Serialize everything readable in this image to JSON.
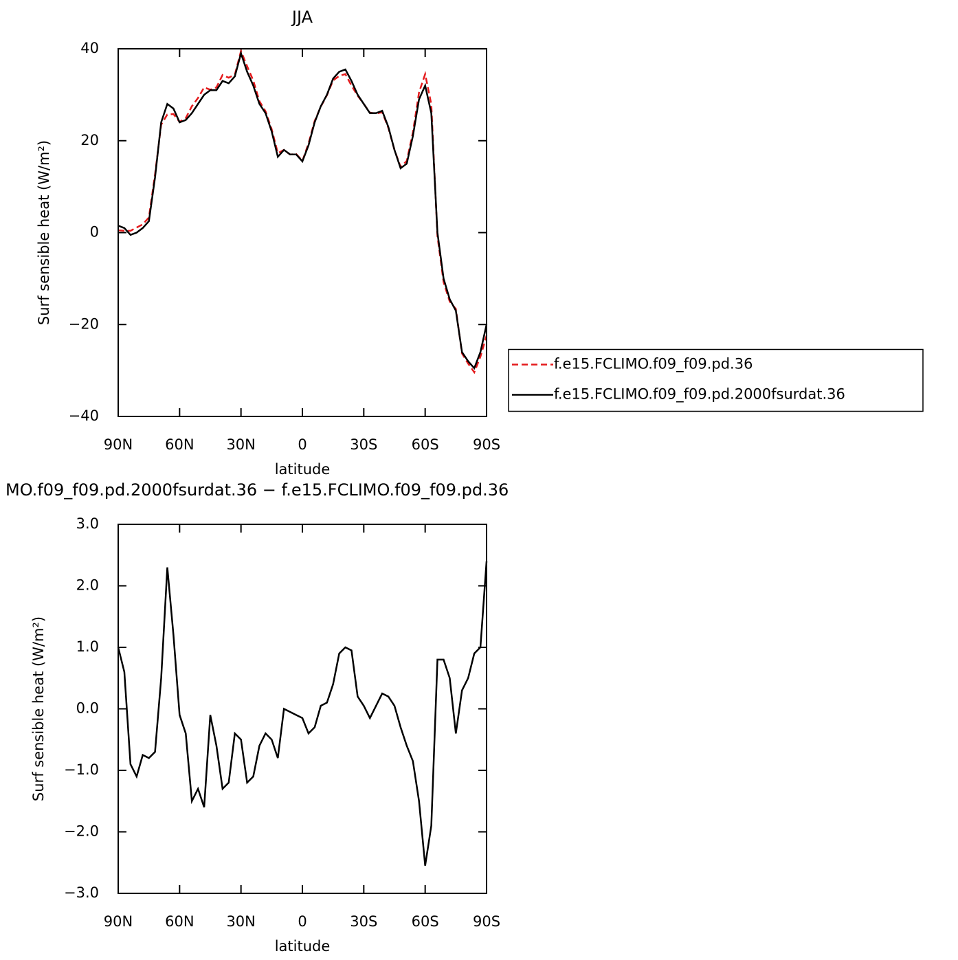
{
  "chart_data": [
    {
      "type": "line",
      "title": "JJA",
      "xlabel": "latitude",
      "ylabel": "Surf sensible heat (W/m²)",
      "x": [
        90,
        87,
        84,
        81,
        78,
        75,
        72,
        69,
        66,
        63,
        60,
        57,
        54,
        51,
        48,
        45,
        42,
        39,
        36,
        33,
        30,
        27,
        24,
        21,
        18,
        15,
        12,
        9,
        6,
        3,
        0,
        -3,
        -6,
        -9,
        -12,
        -15,
        -18,
        -21,
        -24,
        -27,
        -30,
        -33,
        -36,
        -39,
        -42,
        -45,
        -48,
        -51,
        -54,
        -57,
        -60,
        -63,
        -66,
        -69,
        -72,
        -75,
        -78,
        -81,
        -84,
        -87,
        -90
      ],
      "xlim": [
        90,
        -90
      ],
      "xticks": [
        {
          "value": 90,
          "label": "90N"
        },
        {
          "value": 60,
          "label": "60N"
        },
        {
          "value": 30,
          "label": "30N"
        },
        0,
        {
          "value": -30,
          "label": "30S"
        },
        {
          "value": -60,
          "label": "60S"
        },
        {
          "value": -90,
          "label": "90S"
        }
      ],
      "ylim": [
        -40,
        40
      ],
      "yticks": [
        {
          "value": -40,
          "label": "−40"
        },
        {
          "value": -20,
          "label": "−20"
        },
        0,
        20,
        40
      ],
      "legend": "right",
      "series": [
        {
          "name": "f.e15.FCLIMO.f09_f09.pd.36",
          "color": "#e41a1c",
          "line_style": "dashed",
          "values": [
            0.5,
            0.4,
            0.4,
            1.1,
            1.8,
            3.3,
            12.7,
            23.5,
            25.7,
            25.8,
            24.1,
            24.9,
            27.5,
            29.3,
            31.6,
            31.1,
            31.6,
            34.3,
            33.7,
            34.4,
            39.5,
            36.2,
            33.1,
            28.6,
            26.4,
            22.5,
            17.3,
            18,
            17,
            17.1,
            15.6,
            19.4,
            24.3,
            27.4,
            29.9,
            33.1,
            34.1,
            34.5,
            32,
            29.8,
            28,
            26.1,
            25.9,
            26.2,
            22.8,
            18,
            14.3,
            15.6,
            21.8,
            30.5,
            34.5,
            27.9,
            -0.8,
            -10.8,
            -15,
            -16.6,
            -26.3,
            -28.5,
            -30.4,
            -27,
            -22.4
          ]
        },
        {
          "name": "f.e15.FCLIMO.f09_f09.pd.2000fsurdat.36",
          "color": "#000000",
          "line_style": "solid",
          "values": [
            1.5,
            1,
            -0.5,
            0,
            1,
            2.5,
            12,
            24,
            28,
            27,
            24,
            24.5,
            26,
            28,
            30,
            31,
            31,
            33,
            32.5,
            34,
            39,
            35,
            32,
            28,
            26,
            22,
            16.5,
            18,
            17,
            17,
            15.5,
            19,
            24,
            27.5,
            30,
            33.5,
            35,
            35.5,
            33,
            30,
            28,
            26,
            26,
            26.5,
            23,
            18,
            14,
            15,
            21,
            29,
            32,
            26,
            0,
            -10,
            -14.5,
            -17,
            -26,
            -28,
            -29.5,
            -26,
            -20
          ]
        }
      ]
    },
    {
      "type": "line",
      "title": "MO.f09_f09.pd.2000fsurdat.36 − f.e15.FCLIMO.f09_f09.pd.36",
      "xlabel": "latitude",
      "ylabel": "Surf sensible heat (W/m²)",
      "x": [
        90,
        87,
        84,
        81,
        78,
        75,
        72,
        69,
        66,
        63,
        60,
        57,
        54,
        51,
        48,
        45,
        42,
        39,
        36,
        33,
        30,
        27,
        24,
        21,
        18,
        15,
        12,
        9,
        6,
        3,
        0,
        -3,
        -6,
        -9,
        -12,
        -15,
        -18,
        -21,
        -24,
        -27,
        -30,
        -33,
        -36,
        -39,
        -42,
        -45,
        -48,
        -51,
        -54,
        -57,
        -60,
        -63,
        -66,
        -69,
        -72,
        -75,
        -78,
        -81,
        -84,
        -87,
        -90
      ],
      "xlim": [
        90,
        -90
      ],
      "xticks": [
        {
          "value": 90,
          "label": "90N"
        },
        {
          "value": 60,
          "label": "60N"
        },
        {
          "value": 30,
          "label": "30N"
        },
        0,
        {
          "value": -30,
          "label": "30S"
        },
        {
          "value": -60,
          "label": "60S"
        },
        {
          "value": -90,
          "label": "90S"
        }
      ],
      "ylim": [
        -3,
        3
      ],
      "yticks": [
        {
          "value": -3,
          "label": "−3.0"
        },
        {
          "value": -2,
          "label": "−2.0"
        },
        {
          "value": -1,
          "label": "−1.0"
        },
        {
          "value": 0,
          "label": "0.0"
        },
        {
          "value": 1,
          "label": "1.0"
        },
        {
          "value": 2,
          "label": "2.0"
        },
        {
          "value": 3,
          "label": "3.0"
        }
      ],
      "series": [
        {
          "color": "#000000",
          "line_style": "solid",
          "values": [
            1.0,
            0.6,
            -0.9,
            -1.1,
            -0.75,
            -0.8,
            -0.7,
            0.5,
            2.3,
            1.2,
            -0.1,
            -0.4,
            -1.5,
            -1.3,
            -1.6,
            -0.1,
            -0.6,
            -1.3,
            -1.2,
            -0.4,
            -0.5,
            -1.2,
            -1.1,
            -0.6,
            -0.4,
            -0.5,
            -0.8,
            0,
            -0.05,
            -0.1,
            -0.15,
            -0.4,
            -0.3,
            0.05,
            0.1,
            0.4,
            0.9,
            1.0,
            0.95,
            0.2,
            0.05,
            -0.15,
            0.05,
            0.25,
            0.2,
            0.05,
            -0.3,
            -0.6,
            -0.85,
            -1.5,
            -2.55,
            -1.9,
            0.8,
            0.8,
            0.5,
            -0.4,
            0.3,
            0.5,
            0.9,
            1.0,
            2.4
          ]
        }
      ]
    }
  ]
}
